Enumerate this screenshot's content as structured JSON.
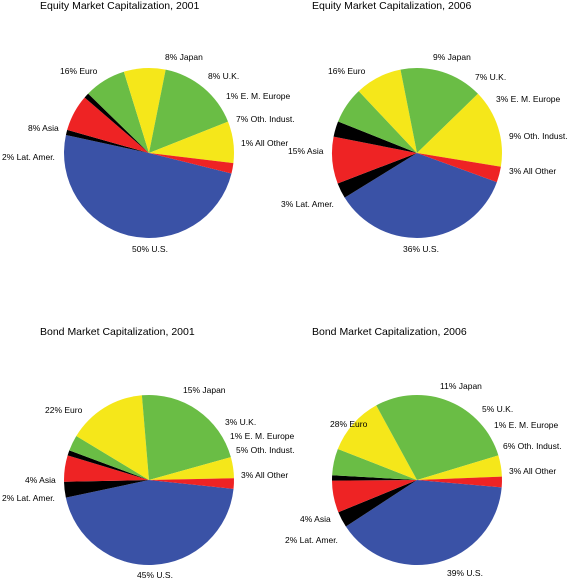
{
  "chart_data": [
    {
      "type": "pie",
      "title": "Equity Market Capitalization, 2001",
      "slices": [
        {
          "category": "U.S.",
          "value": 50,
          "label": "50% U.S.",
          "color": "#3a52a6"
        },
        {
          "category": "All Other",
          "value": 1,
          "label": "1% All Other",
          "color": "#000000"
        },
        {
          "category": "Oth. Indust.",
          "value": 7,
          "label": "7% Oth. Indust.",
          "color": "#ee2324"
        },
        {
          "category": "E. M. Europe",
          "value": 1,
          "label": "1% E. M. Europe",
          "color": "#000000"
        },
        {
          "category": "U.K.",
          "value": 8,
          "label": "8% U.K.",
          "color": "#6abd45"
        },
        {
          "category": "Japan",
          "value": 8,
          "label": "8% Japan",
          "color": "#f5e71a"
        },
        {
          "category": "Euro",
          "value": 16,
          "label": "16% Euro",
          "color": "#6abd45"
        },
        {
          "category": "Asia",
          "value": 8,
          "label": "8% Asia",
          "color": "#f5e71a"
        },
        {
          "category": "Lat. Amer.",
          "value": 2,
          "label": "2% Lat. Amer.",
          "color": "#ee2324"
        }
      ]
    },
    {
      "type": "pie",
      "title": "Equity Market Capitalization, 2006",
      "slices": [
        {
          "category": "U.S.",
          "value": 36,
          "label": "36% U.S.",
          "color": "#3a52a6"
        },
        {
          "category": "All Other",
          "value": 3,
          "label": "3% All Other",
          "color": "#000000"
        },
        {
          "category": "Oth. Indust.",
          "value": 9,
          "label": "9% Oth. Indust.",
          "color": "#ee2324"
        },
        {
          "category": "E. M. Europe",
          "value": 3,
          "label": "3% E. M. Europe",
          "color": "#000000"
        },
        {
          "category": "U.K.",
          "value": 7,
          "label": "7% U.K.",
          "color": "#6abd45"
        },
        {
          "category": "Japan",
          "value": 9,
          "label": "9% Japan",
          "color": "#f5e71a"
        },
        {
          "category": "Euro",
          "value": 16,
          "label": "16% Euro",
          "color": "#6abd45"
        },
        {
          "category": "Asia",
          "value": 15,
          "label": "15% Asia",
          "color": "#f5e71a"
        },
        {
          "category": "Lat. Amer.",
          "value": 3,
          "label": "3% Lat. Amer.",
          "color": "#ee2324"
        }
      ]
    },
    {
      "type": "pie",
      "title": "Bond Market Capitalization, 2001",
      "slices": [
        {
          "category": "U.S.",
          "value": 45,
          "label": "45% U.S.",
          "color": "#3a52a6"
        },
        {
          "category": "All Other",
          "value": 3,
          "label": "3% All Other",
          "color": "#000000"
        },
        {
          "category": "Oth. Indust.",
          "value": 5,
          "label": "5% Oth. Indust.",
          "color": "#ee2324"
        },
        {
          "category": "E. M. Europe",
          "value": 1,
          "label": "1% E. M. Europe",
          "color": "#000000"
        },
        {
          "category": "U.K.",
          "value": 3,
          "label": "3% U.K.",
          "color": "#6abd45"
        },
        {
          "category": "Japan",
          "value": 15,
          "label": "15% Japan",
          "color": "#f5e71a"
        },
        {
          "category": "Euro",
          "value": 22,
          "label": "22% Euro",
          "color": "#6abd45"
        },
        {
          "category": "Asia",
          "value": 4,
          "label": "4% Asia",
          "color": "#f5e71a"
        },
        {
          "category": "Lat. Amer.",
          "value": 2,
          "label": "2% Lat. Amer.",
          "color": "#ee2324"
        }
      ]
    },
    {
      "type": "pie",
      "title": "Bond Market Capitalization, 2006",
      "slices": [
        {
          "category": "U.S.",
          "value": 39,
          "label": "39% U.S.",
          "color": "#3a52a6"
        },
        {
          "category": "All Other",
          "value": 3,
          "label": "3% All Other",
          "color": "#000000"
        },
        {
          "category": "Oth. Indust.",
          "value": 6,
          "label": "6% Oth. Indust.",
          "color": "#ee2324"
        },
        {
          "category": "E. M. Europe",
          "value": 1,
          "label": "1% E. M. Europe",
          "color": "#000000"
        },
        {
          "category": "U.K.",
          "value": 5,
          "label": "5% U.K.",
          "color": "#6abd45"
        },
        {
          "category": "Japan",
          "value": 11,
          "label": "11% Japan",
          "color": "#f5e71a"
        },
        {
          "category": "Euro",
          "value": 28,
          "label": "28% Euro",
          "color": "#6abd45"
        },
        {
          "category": "Asia",
          "value": 4,
          "label": "4% Asia",
          "color": "#f5e71a"
        },
        {
          "category": "Lat. Amer.",
          "value": 2,
          "label": "2% Lat. Amer.",
          "color": "#ee2324"
        }
      ]
    }
  ]
}
